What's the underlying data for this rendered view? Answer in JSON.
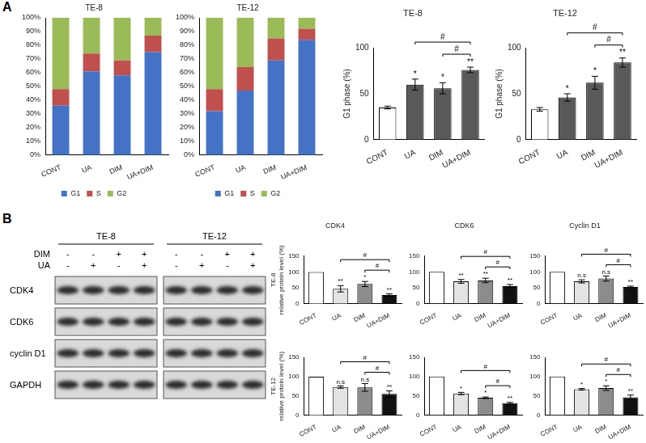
{
  "panels": [
    "A",
    "B"
  ],
  "chart_data": [
    {
      "type": "bar",
      "stacked": true,
      "title": "TE-8",
      "categories": [
        "CONT",
        "UA",
        "DIM",
        "UA+DIM"
      ],
      "series": [
        {
          "name": "G1",
          "color": "#4472c4",
          "values": [
            36,
            61,
            58,
            75
          ]
        },
        {
          "name": "S",
          "color": "#c0504d",
          "values": [
            12,
            13,
            11,
            12
          ]
        },
        {
          "name": "G2",
          "color": "#9bbb59",
          "values": [
            52,
            26,
            31,
            13
          ]
        }
      ],
      "ylim": [
        0,
        100
      ],
      "yticks": [
        {
          "value": 0,
          "label": "0%"
        },
        {
          "value": 10,
          "label": "10%"
        },
        {
          "value": 20,
          "label": "20%"
        },
        {
          "value": 30,
          "label": "30%"
        },
        {
          "value": 40,
          "label": "40%"
        },
        {
          "value": 50,
          "label": "50%"
        },
        {
          "value": 60,
          "label": "60%"
        },
        {
          "value": 70,
          "label": "70%"
        },
        {
          "value": 80,
          "label": "80%"
        },
        {
          "value": 90,
          "label": "90%"
        },
        {
          "value": 100,
          "label": "100%"
        }
      ],
      "grid": false,
      "legend": "bottom"
    },
    {
      "type": "bar",
      "stacked": true,
      "title": "TE-12",
      "categories": [
        "CONT",
        "UA",
        "DIM",
        "UA+DIM"
      ],
      "series": [
        {
          "name": "G1",
          "color": "#4472c4",
          "values": [
            32,
            47,
            69,
            84
          ]
        },
        {
          "name": "S",
          "color": "#c0504d",
          "values": [
            16,
            17,
            16,
            8
          ]
        },
        {
          "name": "G2",
          "color": "#9bbb59",
          "values": [
            52,
            36,
            15,
            8
          ]
        }
      ],
      "ylim": [
        0,
        100
      ],
      "yticks": [
        {
          "value": 0,
          "label": "0%"
        },
        {
          "value": 10,
          "label": "10%"
        },
        {
          "value": 20,
          "label": "20%"
        },
        {
          "value": 30,
          "label": "30%"
        },
        {
          "value": 40,
          "label": "40%"
        },
        {
          "value": 50,
          "label": "50%"
        },
        {
          "value": 60,
          "label": "60%"
        },
        {
          "value": 70,
          "label": "70%"
        },
        {
          "value": 80,
          "label": "80%"
        },
        {
          "value": 90,
          "label": "90%"
        },
        {
          "value": 100,
          "label": "100%"
        }
      ],
      "grid": false,
      "legend": "bottom"
    },
    {
      "type": "bar",
      "title": "TE-8",
      "ylabel": "G1 phase (%)",
      "categories": [
        "CONT",
        "UA",
        "DIM",
        "UA+DIM"
      ],
      "values": [
        35,
        60,
        56,
        76
      ],
      "errors": [
        1.5,
        6,
        6,
        3
      ],
      "colors": [
        "#ffffff",
        "#595959",
        "#595959",
        "#595959"
      ],
      "annotations": [
        null,
        "*",
        "*",
        "**"
      ],
      "comparisons": [
        {
          "from": "DIM",
          "to": "UA+DIM",
          "label": "#"
        },
        {
          "from": "UA",
          "to": "UA+DIM",
          "label": "#"
        }
      ],
      "ylim": [
        0,
        100
      ],
      "yticks": [
        0,
        50,
        100
      ],
      "grid": false
    },
    {
      "type": "bar",
      "title": "TE-12",
      "ylabel": "G1 phase (%)",
      "categories": [
        "CONT",
        "UA",
        "DIM",
        "UA+DIM"
      ],
      "values": [
        33,
        46,
        62,
        84
      ],
      "errors": [
        2,
        4,
        7,
        5
      ],
      "colors": [
        "#ffffff",
        "#595959",
        "#595959",
        "#595959"
      ],
      "annotations": [
        null,
        "*",
        "*",
        "**"
      ],
      "comparisons": [
        {
          "from": "DIM",
          "to": "UA+DIM",
          "label": "#"
        },
        {
          "from": "UA",
          "to": "UA+DIM",
          "label": "#"
        }
      ],
      "ylim": [
        0,
        100
      ],
      "yticks": [
        0,
        50,
        100
      ],
      "grid": false
    },
    {
      "type": "bar",
      "title": "CDK4",
      "ylabel": [
        "TE-8",
        "relative protein level (%)"
      ],
      "categories": [
        "CONT",
        "UA",
        "DIM",
        "UA+DIM"
      ],
      "values": [
        100,
        47,
        62,
        27
      ],
      "errors": [
        0,
        10,
        8,
        4
      ],
      "colors": [
        "#ffffff",
        "#e3e3e3",
        "#8c8c8c",
        "#111111"
      ],
      "annotations": [
        null,
        "**",
        "*",
        "**"
      ],
      "comparisons": [
        {
          "from": "DIM",
          "to": "UA+DIM",
          "label": "#"
        },
        {
          "from": "UA",
          "to": "UA+DIM",
          "label": "#"
        }
      ],
      "ylim": [
        0,
        150
      ],
      "yticks": [
        0,
        50,
        100,
        150
      ],
      "grid": false
    },
    {
      "type": "bar",
      "title": "CDK6",
      "categories": [
        "CONT",
        "UA",
        "DIM",
        "UA+DIM"
      ],
      "values": [
        100,
        70,
        73,
        55
      ],
      "errors": [
        0,
        6,
        7,
        5
      ],
      "colors": [
        "#ffffff",
        "#e3e3e3",
        "#8c8c8c",
        "#111111"
      ],
      "annotations": [
        null,
        "**",
        "**",
        "**"
      ],
      "comparisons": [
        {
          "from": "DIM",
          "to": "UA+DIM",
          "label": "#"
        },
        {
          "from": "UA",
          "to": "UA+DIM",
          "label": "#"
        }
      ],
      "ylim": [
        0,
        150
      ],
      "yticks": [
        0,
        50,
        100,
        150
      ],
      "grid": false
    },
    {
      "type": "bar",
      "title": "Cyclin D1",
      "categories": [
        "CONT",
        "UA",
        "DIM",
        "UA+DIM"
      ],
      "values": [
        100,
        70,
        79,
        52
      ],
      "errors": [
        0,
        5,
        8,
        3
      ],
      "colors": [
        "#ffffff",
        "#e3e3e3",
        "#8c8c8c",
        "#111111"
      ],
      "annotations": [
        null,
        "n.s",
        "n.s",
        "**"
      ],
      "comparisons": [
        {
          "from": "DIM",
          "to": "UA+DIM",
          "label": "#"
        },
        {
          "from": "UA",
          "to": "UA+DIM",
          "label": "#"
        }
      ],
      "ylim": [
        0,
        150
      ],
      "yticks": [
        0,
        50,
        100,
        150
      ],
      "grid": false
    },
    {
      "type": "bar",
      "ylabel": [
        "TE-12",
        "relative protein level (%)"
      ],
      "categories": [
        "CONT",
        "UA",
        "DIM",
        "UA+DIM"
      ],
      "values": [
        100,
        73,
        72,
        55
      ],
      "errors": [
        0,
        3,
        10,
        8
      ],
      "colors": [
        "#ffffff",
        "#e3e3e3",
        "#8c8c8c",
        "#111111"
      ],
      "annotations": [
        null,
        "n.s",
        "n.s",
        "**"
      ],
      "comparisons": [
        {
          "from": "DIM",
          "to": "UA+DIM",
          "label": "#"
        },
        {
          "from": "UA",
          "to": "UA+DIM",
          "label": "#"
        }
      ],
      "ylim": [
        0,
        150
      ],
      "yticks": [
        0,
        50,
        100,
        150
      ],
      "grid": false
    },
    {
      "type": "bar",
      "categories": [
        "CONT",
        "UA",
        "DIM",
        "UA+DIM"
      ],
      "values": [
        100,
        56,
        45,
        31
      ],
      "errors": [
        0,
        3,
        2,
        2
      ],
      "colors": [
        "#ffffff",
        "#e3e3e3",
        "#8c8c8c",
        "#111111"
      ],
      "annotations": [
        null,
        "*",
        "*",
        "**"
      ],
      "comparisons": [
        {
          "from": "DIM",
          "to": "UA+DIM",
          "label": "#"
        },
        {
          "from": "UA",
          "to": "UA+DIM",
          "label": "#"
        }
      ],
      "ylim": [
        0,
        150
      ],
      "yticks": [
        0,
        50,
        100,
        150
      ],
      "grid": false
    },
    {
      "type": "bar",
      "categories": [
        "CONT",
        "UA",
        "DIM",
        "UA+DIM"
      ],
      "values": [
        100,
        67,
        70,
        46
      ],
      "errors": [
        0,
        2,
        6,
        6
      ],
      "colors": [
        "#ffffff",
        "#e3e3e3",
        "#8c8c8c",
        "#111111"
      ],
      "annotations": [
        null,
        "*",
        "*",
        "**"
      ],
      "comparisons": [
        {
          "from": "DIM",
          "to": "UA+DIM",
          "label": "#"
        },
        {
          "from": "UA",
          "to": "UA+DIM",
          "label": "#"
        }
      ],
      "ylim": [
        0,
        150
      ],
      "yticks": [
        0,
        50,
        100,
        150
      ],
      "grid": false
    }
  ],
  "blot": {
    "cell_lines": [
      "TE-8",
      "TE-12"
    ],
    "treatments": [
      {
        "label": "DIM",
        "marks": [
          "-",
          "-",
          "+",
          "+"
        ]
      },
      {
        "label": "UA",
        "marks": [
          "-",
          "+",
          "-",
          "+"
        ]
      }
    ],
    "proteins": [
      "CDK4",
      "CDK6",
      "cyclin D1",
      "GAPDH"
    ]
  }
}
